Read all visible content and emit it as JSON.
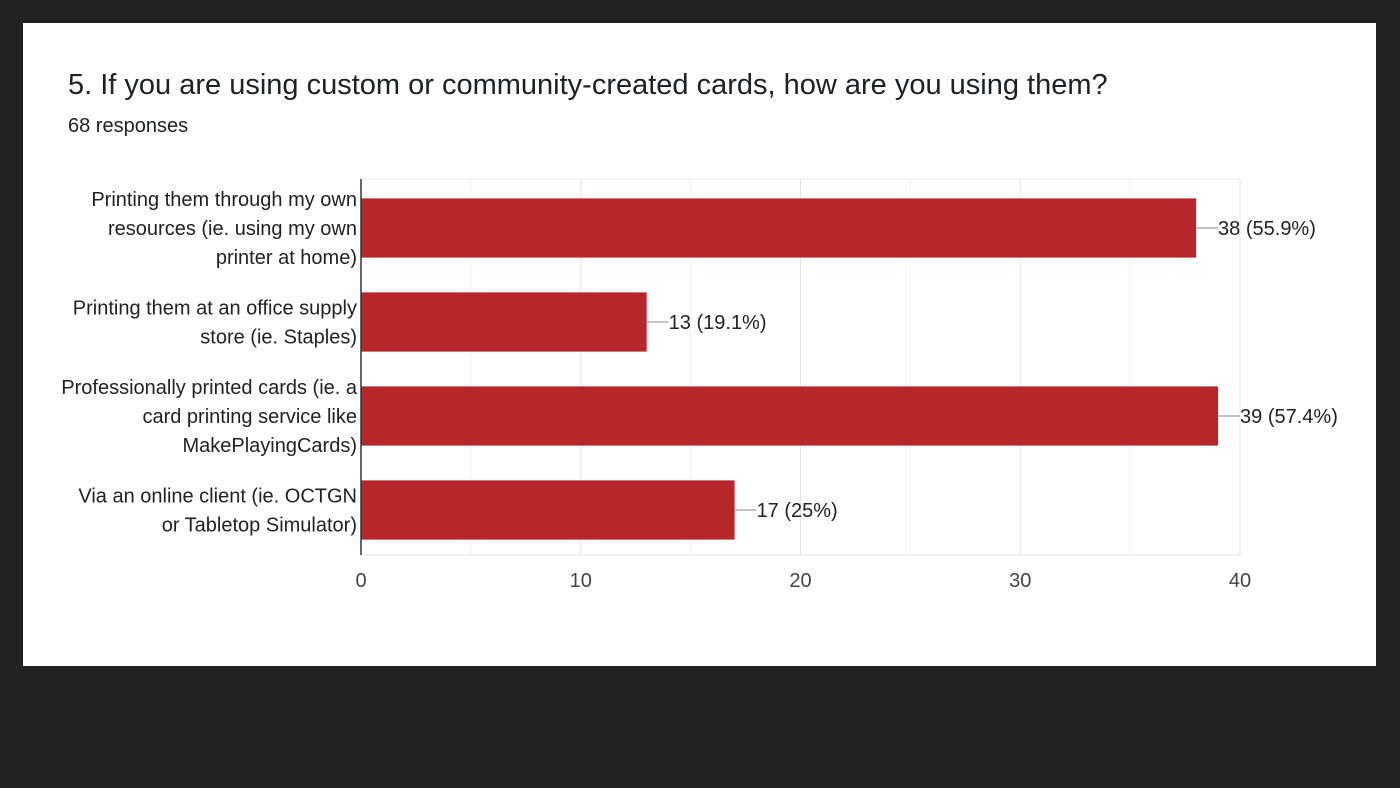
{
  "form": {
    "question": "5. If you are using custom or community-created cards, how are you using them?",
    "responses": "68 responses"
  },
  "chart_data": {
    "type": "bar",
    "orientation": "horizontal",
    "title": "5. If you are using custom or community-created cards, how are you using them?",
    "subtitle": "68 responses",
    "categories": [
      [
        "Printing them through my own",
        "resources (ie. using my own",
        "printer at home)"
      ],
      [
        "Printing them at an office supply",
        "store (ie. Staples)"
      ],
      [
        "Professionally printed cards (ie. a",
        "card printing service like",
        "MakePlayingCards)"
      ],
      [
        "Via an online client (ie. OCTGN",
        "or Tabletop Simulator)"
      ]
    ],
    "values": [
      38,
      13,
      39,
      17
    ],
    "data_labels": [
      "38 (55.9%)",
      "13 (19.1%)",
      "39 (57.4%)",
      "17 (25%)"
    ],
    "xlim": [
      0,
      40
    ],
    "xticks": [
      0,
      10,
      20,
      30,
      40
    ],
    "minor_gridlines": true,
    "grid": true,
    "bar_color": "#b5272b",
    "xlabel": "",
    "ylabel": ""
  }
}
